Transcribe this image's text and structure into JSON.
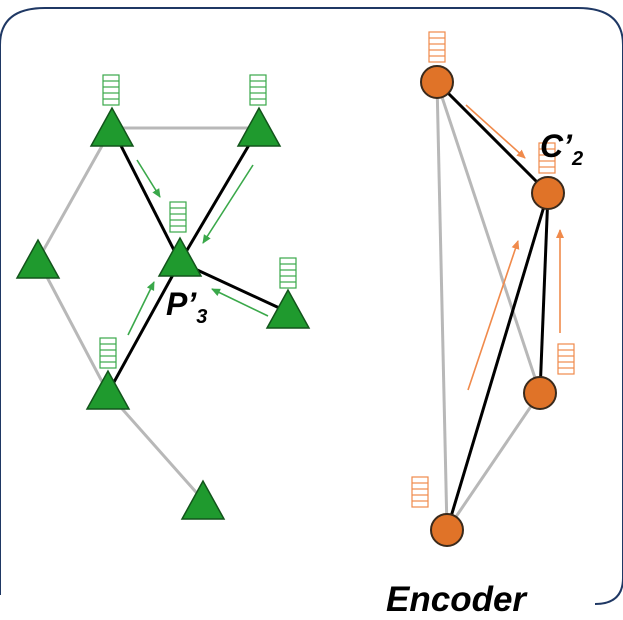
{
  "colors": {
    "frame_border": "#1f3864",
    "node_green": "#1f9a2e",
    "node_orange": "#e07328",
    "edge_gray": "#b8b8b8",
    "edge_black": "#000000",
    "arrow_green": "#3aa84a",
    "arrow_orange": "#f08a4b"
  },
  "left_graph": {
    "node_shape": "triangle-icon",
    "label_main": "P’",
    "label_sub": "3"
  },
  "right_graph": {
    "node_shape": "circle",
    "label_main": "C’",
    "label_sub": "2"
  },
  "caption": "Encoder"
}
